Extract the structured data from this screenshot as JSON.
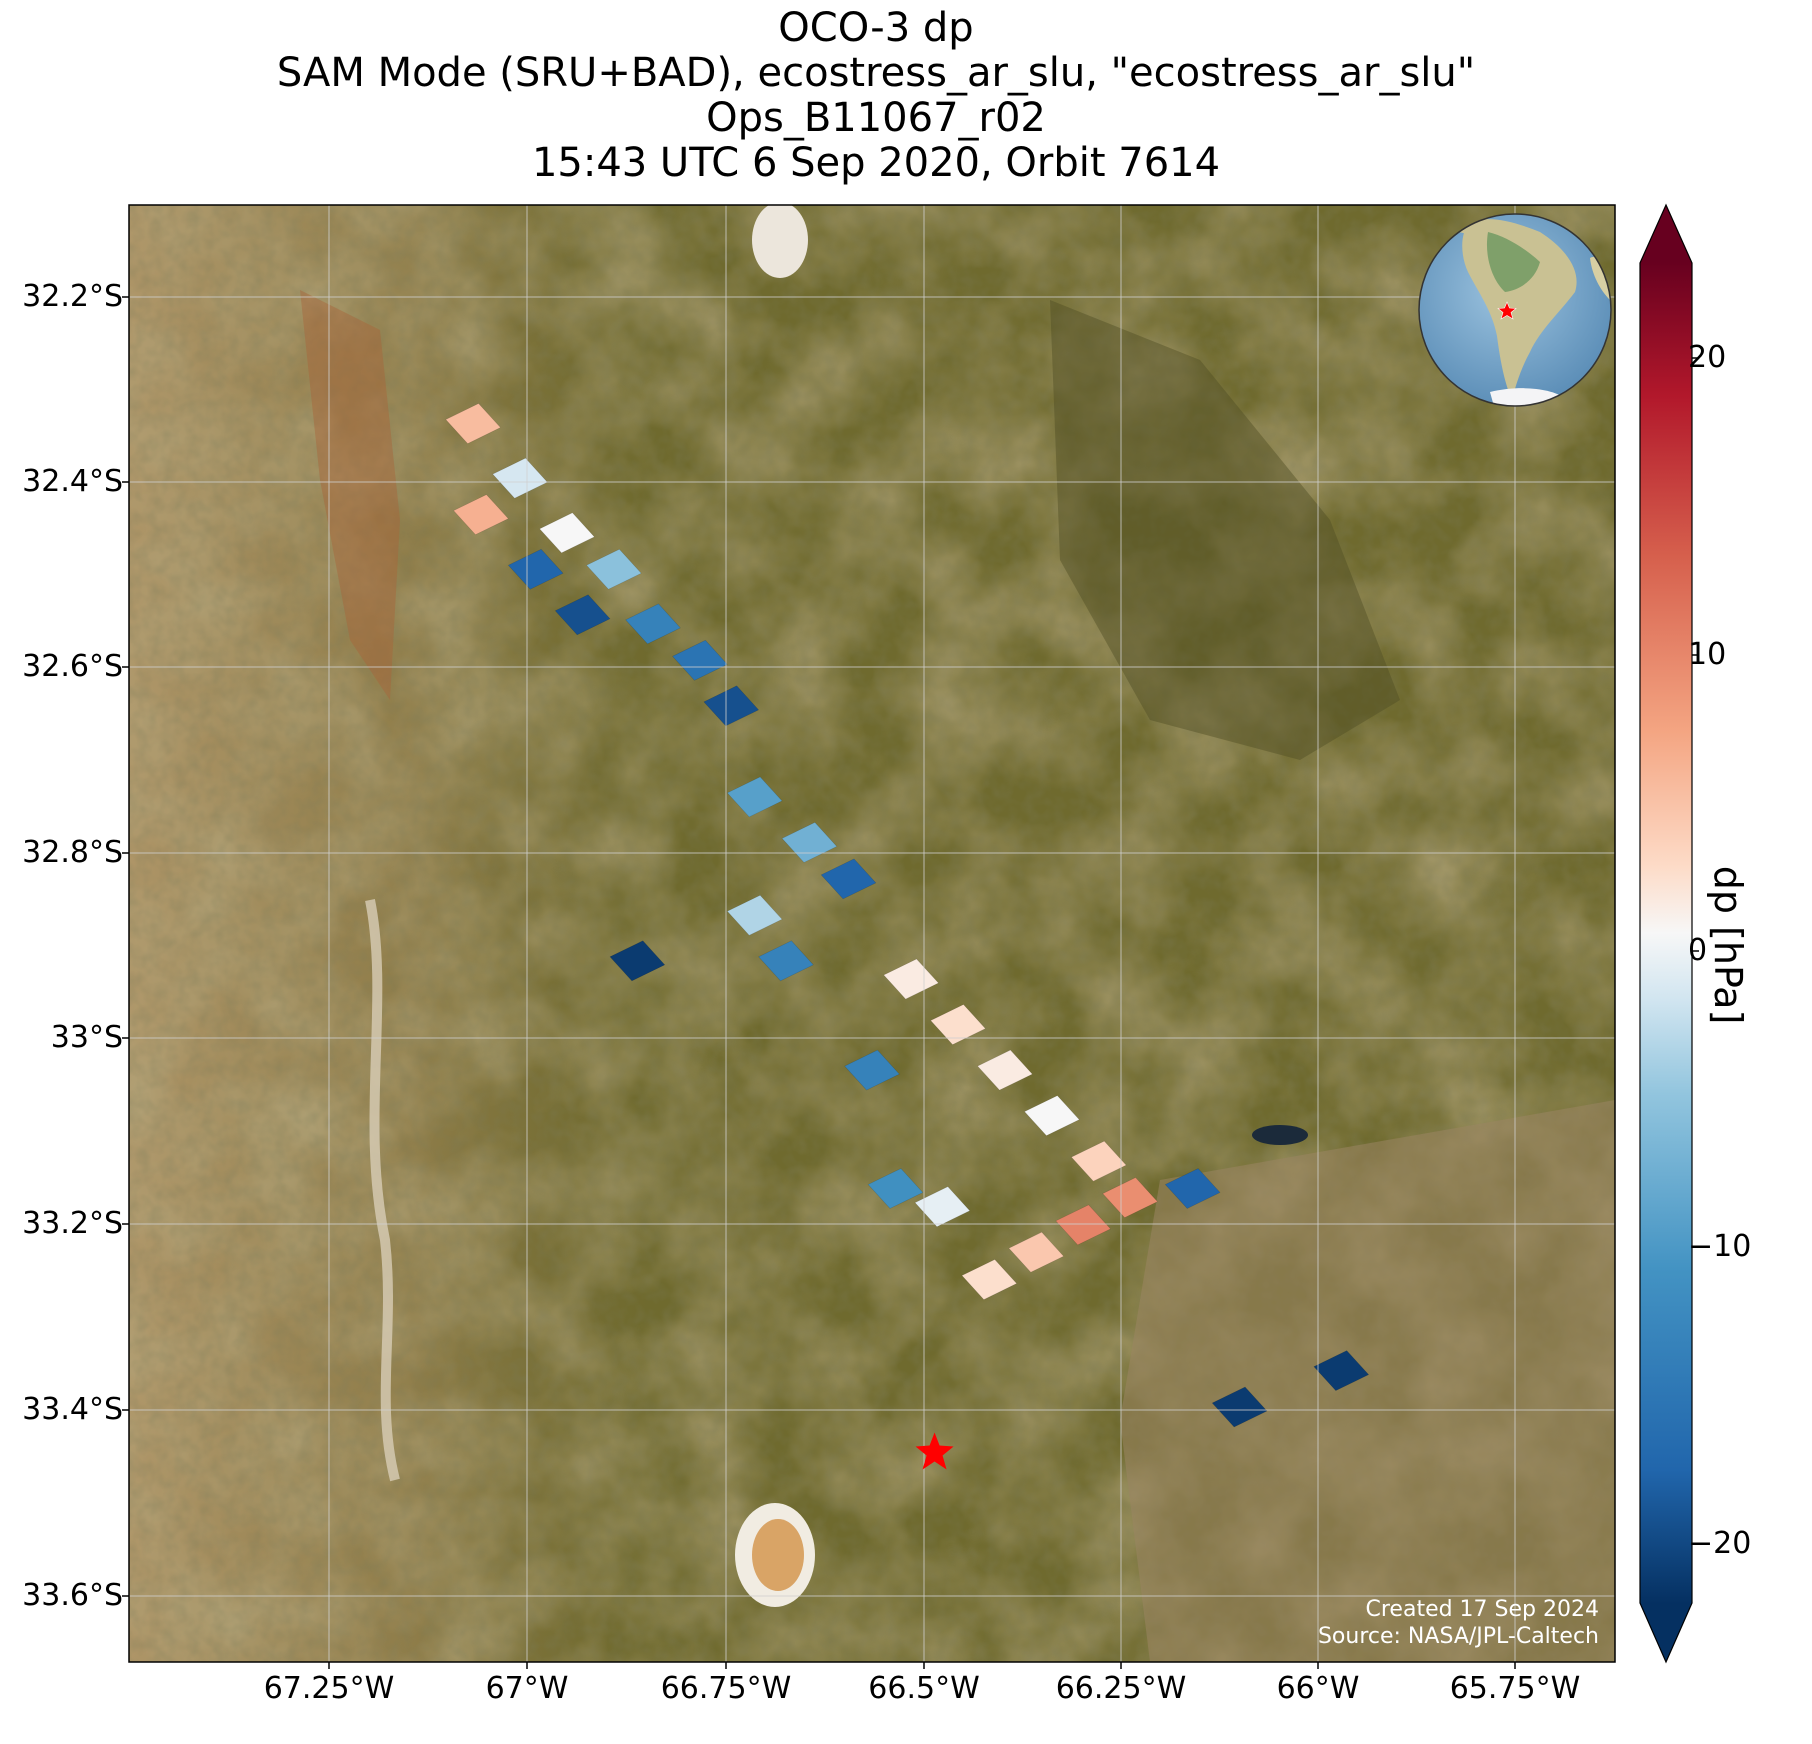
{
  "title": {
    "line1": "OCO-3 dp",
    "line2": "SAM Mode (SRU+BAD), ecostress_ar_slu, \"ecostress_ar_slu\"",
    "line3": "Ops_B11067_r02",
    "line4": "15:43 UTC 6 Sep 2020, Orbit 7614"
  },
  "axes": {
    "lat_ticks": [
      "32.2°S",
      "32.4°S",
      "32.6°S",
      "32.8°S",
      "33°S",
      "33.2°S",
      "33.4°S",
      "33.6°S"
    ],
    "lon_ticks": [
      "67.25°W",
      "67°W",
      "66.75°W",
      "66.5°W",
      "66.25°W",
      "66°W",
      "65.75°W"
    ]
  },
  "colorbar": {
    "label": "dp [hPa]",
    "ticks": [
      "20",
      "10",
      "0",
      "−10",
      "−20"
    ],
    "tick_values": [
      20,
      10,
      0,
      -10,
      -20
    ],
    "range": [
      -23,
      23
    ],
    "extend": "both",
    "colormap": "RdBu_r"
  },
  "credits": {
    "created": "Created 17 Sep 2024",
    "source": "Source: NASA/JPL-Caltech"
  },
  "target_marker": {
    "symbol": "red-star",
    "lon": -66.47,
    "lat": -33.47,
    "color": "#ff0000"
  },
  "inset_globe": {
    "content": "South America globe with target star",
    "star_color": "#ff0000"
  },
  "colors": {
    "background_terrain": "#6e6a2c",
    "grid": "#c8c8c8",
    "star": "#ff0000"
  },
  "chart_data": {
    "type": "map",
    "variable": "dp",
    "units": "hPa",
    "lon_range": [
      -67.5,
      -65.6
    ],
    "lat_range": [
      -33.7,
      -32.1
    ],
    "soundings": [
      {
        "lon": -67.06,
        "lat": -32.34,
        "dp": 5
      },
      {
        "lon": -67.0,
        "lat": -32.4,
        "dp": -2
      },
      {
        "lon": -66.94,
        "lat": -32.46,
        "dp": 0
      },
      {
        "lon": -66.88,
        "lat": -32.5,
        "dp": -6
      },
      {
        "lon": -66.83,
        "lat": -32.56,
        "dp": -14
      },
      {
        "lon": -66.77,
        "lat": -32.6,
        "dp": -16
      },
      {
        "lon": -66.73,
        "lat": -32.65,
        "dp": -20
      },
      {
        "lon": -67.05,
        "lat": -32.44,
        "dp": 6
      },
      {
        "lon": -66.98,
        "lat": -32.5,
        "dp": -18
      },
      {
        "lon": -66.92,
        "lat": -32.55,
        "dp": -20
      },
      {
        "lon": -66.7,
        "lat": -32.75,
        "dp": -10
      },
      {
        "lon": -66.63,
        "lat": -32.8,
        "dp": -8
      },
      {
        "lon": -66.58,
        "lat": -32.84,
        "dp": -18
      },
      {
        "lon": -66.7,
        "lat": -32.88,
        "dp": -4
      },
      {
        "lon": -66.66,
        "lat": -32.93,
        "dp": -14
      },
      {
        "lon": -66.85,
        "lat": -32.93,
        "dp": -22
      },
      {
        "lon": -66.5,
        "lat": -32.95,
        "dp": 1
      },
      {
        "lon": -66.44,
        "lat": -33.0,
        "dp": 2
      },
      {
        "lon": -66.38,
        "lat": -33.05,
        "dp": 1
      },
      {
        "lon": -66.32,
        "lat": -33.1,
        "dp": 0
      },
      {
        "lon": -66.26,
        "lat": -33.15,
        "dp": 3
      },
      {
        "lon": -66.22,
        "lat": -33.19,
        "dp": 9
      },
      {
        "lon": -66.28,
        "lat": -33.22,
        "dp": 10
      },
      {
        "lon": -66.34,
        "lat": -33.25,
        "dp": 4
      },
      {
        "lon": -66.4,
        "lat": -33.28,
        "dp": 2
      },
      {
        "lon": -66.46,
        "lat": -33.2,
        "dp": -1
      },
      {
        "lon": -66.52,
        "lat": -33.18,
        "dp": -12
      },
      {
        "lon": -66.55,
        "lat": -33.05,
        "dp": -14
      },
      {
        "lon": -66.14,
        "lat": -33.18,
        "dp": -18
      },
      {
        "lon": -66.08,
        "lat": -33.42,
        "dp": -22
      },
      {
        "lon": -65.95,
        "lat": -33.38,
        "dp": -22
      }
    ]
  }
}
